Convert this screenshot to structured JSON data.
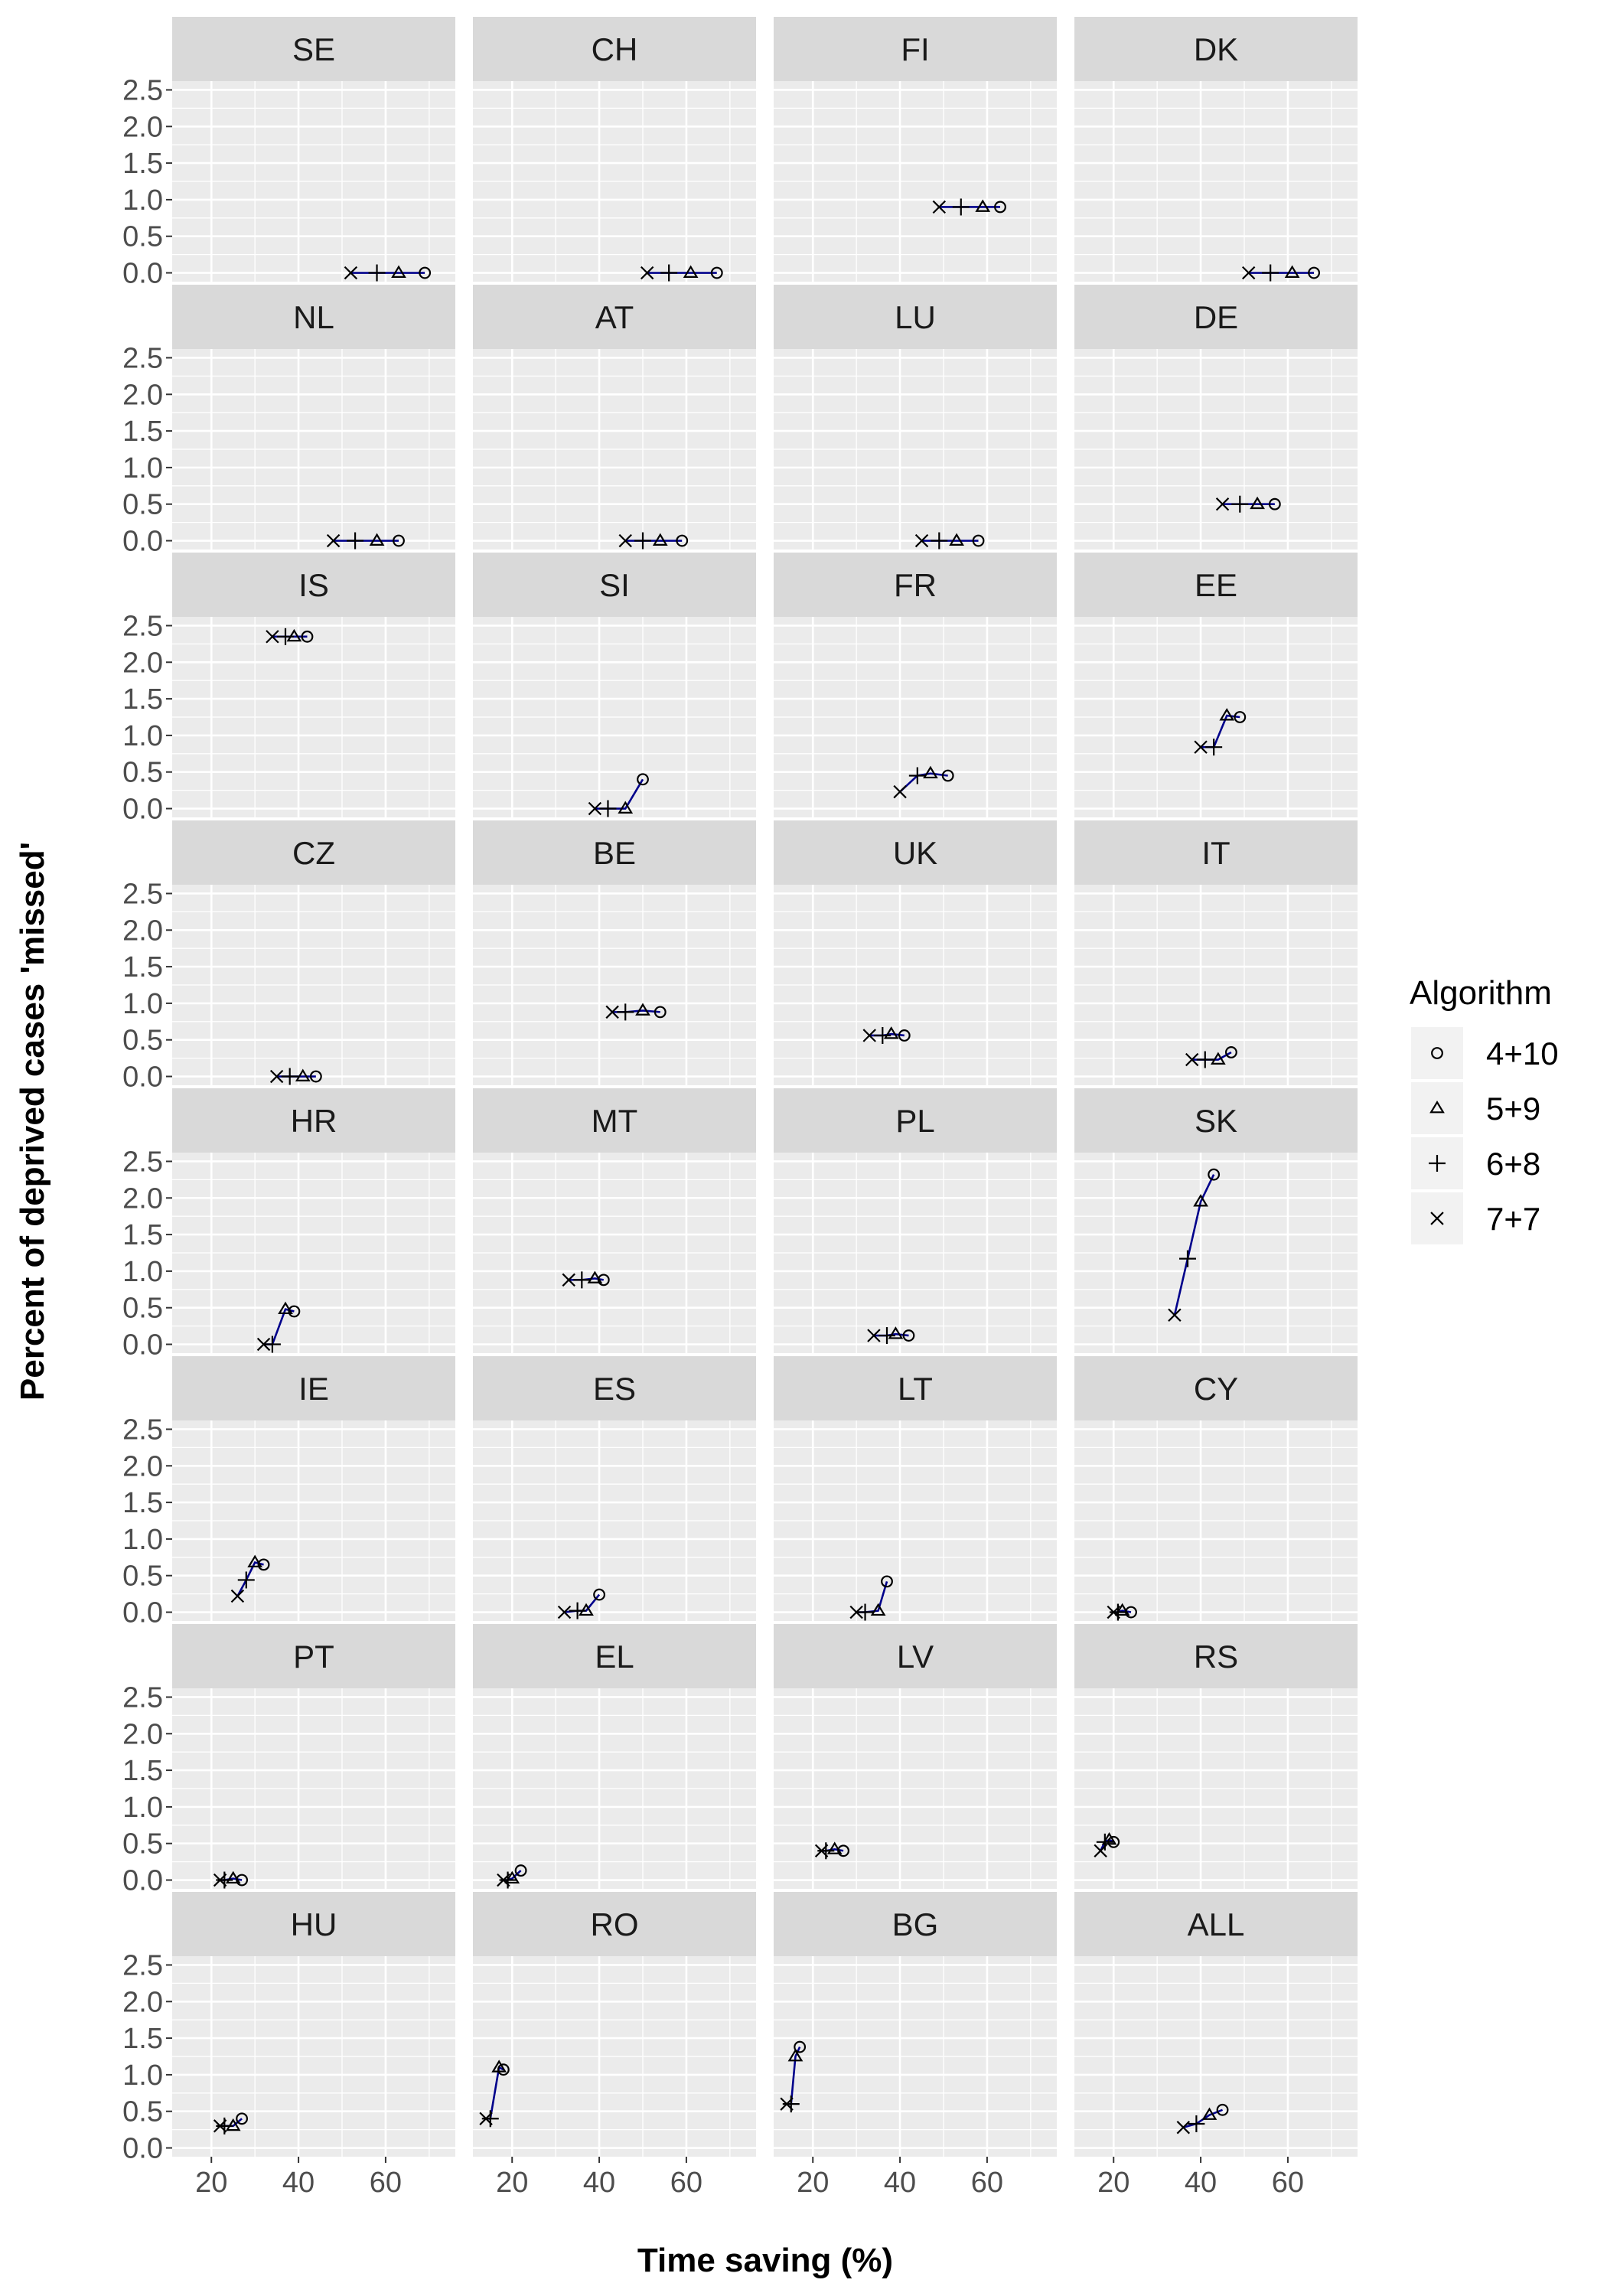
{
  "chart_data": {
    "type": "scatter",
    "xlabel": "Time saving (%)",
    "ylabel": "Percent of deprived cases 'missed'",
    "xlim": [
      11,
      76
    ],
    "ylim": [
      -0.12,
      2.62
    ],
    "x_ticks": [
      20,
      40,
      60
    ],
    "y_ticks": [
      0.0,
      0.5,
      1.0,
      1.5,
      2.0,
      2.5
    ],
    "y_tick_labels": [
      "0.0",
      "0.5",
      "1.0",
      "1.5",
      "2.0",
      "2.5"
    ],
    "grid": true,
    "legend_position": "right",
    "legend": {
      "title": "Algorithm",
      "entries": [
        {
          "label": "4+10",
          "marker": "circle"
        },
        {
          "label": "5+9",
          "marker": "triangle"
        },
        {
          "label": "6+8",
          "marker": "plus"
        },
        {
          "label": "7+7",
          "marker": "cross"
        }
      ]
    },
    "series_order": [
      "4+10",
      "5+9",
      "6+8",
      "7+7"
    ],
    "colors": {
      "line": "#00008b",
      "marker": "#000000",
      "strip_bg": "#d9d9d9",
      "panel_bg": "#ebebeb",
      "grid": "#ffffff"
    },
    "panels": [
      {
        "label": "SE",
        "points": [
          [
            69,
            0.0
          ],
          [
            63,
            0.0
          ],
          [
            58,
            0.0
          ],
          [
            52,
            0.0
          ]
        ]
      },
      {
        "label": "CH",
        "points": [
          [
            67,
            0.0
          ],
          [
            61,
            0.0
          ],
          [
            56,
            0.0
          ],
          [
            51,
            0.0
          ]
        ]
      },
      {
        "label": "FI",
        "points": [
          [
            63,
            0.9
          ],
          [
            59,
            0.9
          ],
          [
            54,
            0.9
          ],
          [
            49,
            0.9
          ]
        ]
      },
      {
        "label": "DK",
        "points": [
          [
            66,
            0.0
          ],
          [
            61,
            0.0
          ],
          [
            56,
            0.0
          ],
          [
            51,
            0.0
          ]
        ]
      },
      {
        "label": "NL",
        "points": [
          [
            63,
            0.0
          ],
          [
            58,
            0.0
          ],
          [
            53,
            0.0
          ],
          [
            48,
            0.0
          ]
        ]
      },
      {
        "label": "AT",
        "points": [
          [
            59,
            0.0
          ],
          [
            54,
            0.0
          ],
          [
            50,
            0.0
          ],
          [
            46,
            0.0
          ]
        ]
      },
      {
        "label": "LU",
        "points": [
          [
            58,
            0.0
          ],
          [
            53,
            0.0
          ],
          [
            49,
            0.0
          ],
          [
            45,
            0.0
          ]
        ]
      },
      {
        "label": "DE",
        "points": [
          [
            57,
            0.5
          ],
          [
            53,
            0.5
          ],
          [
            49,
            0.5
          ],
          [
            45,
            0.5
          ]
        ]
      },
      {
        "label": "IS",
        "points": [
          [
            42,
            2.35
          ],
          [
            39,
            2.35
          ],
          [
            37,
            2.35
          ],
          [
            34,
            2.35
          ]
        ]
      },
      {
        "label": "SI",
        "points": [
          [
            50,
            0.4
          ],
          [
            46,
            0.0
          ],
          [
            42,
            0.0
          ],
          [
            39,
            0.0
          ]
        ]
      },
      {
        "label": "FR",
        "points": [
          [
            51,
            0.45
          ],
          [
            47,
            0.48
          ],
          [
            44,
            0.45
          ],
          [
            40,
            0.23
          ]
        ]
      },
      {
        "label": "EE",
        "points": [
          [
            49,
            1.25
          ],
          [
            46,
            1.27
          ],
          [
            43,
            0.84
          ],
          [
            40,
            0.84
          ]
        ]
      },
      {
        "label": "CZ",
        "points": [
          [
            44,
            0.0
          ],
          [
            41,
            0.0
          ],
          [
            38,
            0.0
          ],
          [
            35,
            0.0
          ]
        ]
      },
      {
        "label": "BE",
        "points": [
          [
            54,
            0.88
          ],
          [
            50,
            0.9
          ],
          [
            46,
            0.88
          ],
          [
            43,
            0.88
          ]
        ]
      },
      {
        "label": "UK",
        "points": [
          [
            41,
            0.56
          ],
          [
            38,
            0.58
          ],
          [
            36,
            0.56
          ],
          [
            33,
            0.56
          ]
        ]
      },
      {
        "label": "IT",
        "points": [
          [
            47,
            0.33
          ],
          [
            44,
            0.23
          ],
          [
            41,
            0.23
          ],
          [
            38,
            0.23
          ]
        ]
      },
      {
        "label": "HR",
        "points": [
          [
            39,
            0.45
          ],
          [
            37,
            0.48
          ],
          [
            34,
            0.0
          ],
          [
            32,
            0.0
          ]
        ]
      },
      {
        "label": "MT",
        "points": [
          [
            41,
            0.88
          ],
          [
            39,
            0.9
          ],
          [
            36,
            0.88
          ],
          [
            33,
            0.88
          ]
        ]
      },
      {
        "label": "PL",
        "points": [
          [
            42,
            0.12
          ],
          [
            39,
            0.14
          ],
          [
            37,
            0.12
          ],
          [
            34,
            0.12
          ]
        ]
      },
      {
        "label": "SK",
        "points": [
          [
            43,
            2.32
          ],
          [
            40,
            1.95
          ],
          [
            37,
            1.17
          ],
          [
            34,
            0.4
          ]
        ]
      },
      {
        "label": "IE",
        "points": [
          [
            32,
            0.65
          ],
          [
            30,
            0.68
          ],
          [
            28,
            0.44
          ],
          [
            26,
            0.22
          ]
        ]
      },
      {
        "label": "ES",
        "points": [
          [
            40,
            0.24
          ],
          [
            37,
            0.02
          ],
          [
            35,
            0.02
          ],
          [
            32,
            0.0
          ]
        ]
      },
      {
        "label": "LT",
        "points": [
          [
            37,
            0.42
          ],
          [
            35,
            0.02
          ],
          [
            32,
            0.0
          ],
          [
            30,
            0.0
          ]
        ]
      },
      {
        "label": "CY",
        "points": [
          [
            24,
            0.0
          ],
          [
            22,
            0.02
          ],
          [
            21,
            0.0
          ],
          [
            20,
            0.0
          ]
        ]
      },
      {
        "label": "PT",
        "points": [
          [
            27,
            0.0
          ],
          [
            25,
            0.02
          ],
          [
            23,
            0.0
          ],
          [
            22,
            0.0
          ]
        ]
      },
      {
        "label": "EL",
        "points": [
          [
            22,
            0.13
          ],
          [
            20,
            0.02
          ],
          [
            19,
            0.0
          ],
          [
            18,
            0.0
          ]
        ]
      },
      {
        "label": "LV",
        "points": [
          [
            27,
            0.4
          ],
          [
            25,
            0.42
          ],
          [
            23,
            0.4
          ],
          [
            22,
            0.4
          ]
        ]
      },
      {
        "label": "RS",
        "points": [
          [
            20,
            0.52
          ],
          [
            19,
            0.55
          ],
          [
            18,
            0.52
          ],
          [
            17,
            0.4
          ]
        ]
      },
      {
        "label": "HU",
        "points": [
          [
            27,
            0.4
          ],
          [
            25,
            0.3
          ],
          [
            23,
            0.3
          ],
          [
            22,
            0.3
          ]
        ]
      },
      {
        "label": "RO",
        "points": [
          [
            18,
            1.07
          ],
          [
            17,
            1.1
          ],
          [
            15,
            0.4
          ],
          [
            14,
            0.4
          ]
        ]
      },
      {
        "label": "BG",
        "points": [
          [
            17,
            1.38
          ],
          [
            16,
            1.25
          ],
          [
            15,
            0.6
          ],
          [
            14,
            0.6
          ]
        ]
      },
      {
        "label": "ALL",
        "points": [
          [
            45,
            0.52
          ],
          [
            42,
            0.45
          ],
          [
            39,
            0.33
          ],
          [
            36,
            0.28
          ]
        ]
      }
    ]
  }
}
